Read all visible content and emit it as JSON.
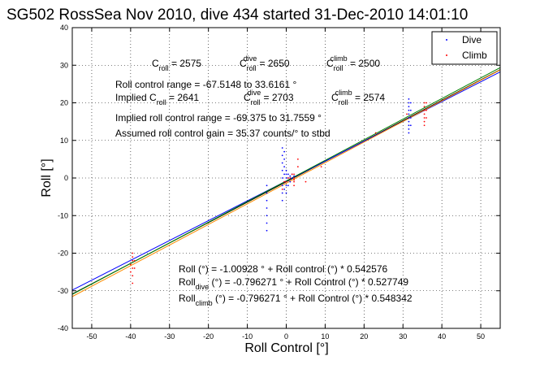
{
  "chart_data": {
    "type": "scatter",
    "title": "SG502 RossSea Nov 2010, dive 434 started 31-Dec-2010 14:01:10",
    "xlabel": "Roll Control [°]",
    "ylabel": "Roll [°]",
    "xlim": [
      -55,
      55
    ],
    "ylim": [
      -40,
      40
    ],
    "xticks": [
      -50,
      -40,
      -30,
      -20,
      -10,
      0,
      10,
      20,
      30,
      40,
      50
    ],
    "yticks": [
      -40,
      -30,
      -20,
      -10,
      0,
      10,
      20,
      30,
      40
    ],
    "grid": true,
    "legend_position": "top-right",
    "legend": [
      {
        "label": "Dive",
        "color": "#0000ff"
      },
      {
        "label": "Climb",
        "color": "#ff0000"
      }
    ],
    "series": [
      {
        "name": "Dive",
        "color": "#0000ff",
        "points": [
          [
            -5,
            -14
          ],
          [
            -5,
            -12
          ],
          [
            -5,
            -10
          ],
          [
            -5,
            -8
          ],
          [
            -5,
            -6
          ],
          [
            -5,
            -4
          ],
          [
            -5,
            -2
          ],
          [
            -1,
            -6
          ],
          [
            -1,
            -4
          ],
          [
            -1,
            -2
          ],
          [
            -1,
            0
          ],
          [
            -1,
            2
          ],
          [
            -1,
            4
          ],
          [
            -1,
            6
          ],
          [
            -1,
            8
          ],
          [
            -0.5,
            -3
          ],
          [
            -0.5,
            -1
          ],
          [
            -0.5,
            1
          ],
          [
            -0.5,
            3
          ],
          [
            -0.5,
            5
          ],
          [
            -0.5,
            7
          ],
          [
            0,
            -4
          ],
          [
            0,
            -2
          ],
          [
            0,
            0
          ],
          [
            0,
            1
          ],
          [
            0,
            2
          ],
          [
            0,
            -1
          ],
          [
            0.5,
            -2
          ],
          [
            0.5,
            0
          ],
          [
            0.5,
            1
          ],
          [
            1,
            -1
          ],
          [
            1,
            0
          ],
          [
            1,
            0.5
          ],
          [
            1.5,
            0
          ],
          [
            1.5,
            1
          ],
          [
            2,
            0.5
          ],
          [
            31.5,
            12
          ],
          [
            31.5,
            13
          ],
          [
            31.5,
            14
          ],
          [
            31.5,
            15
          ],
          [
            31.5,
            16
          ],
          [
            31.5,
            17
          ],
          [
            31.5,
            18
          ],
          [
            31.5,
            19
          ],
          [
            31.5,
            20
          ],
          [
            31.5,
            21
          ],
          [
            32,
            14
          ],
          [
            32,
            16
          ],
          [
            32,
            18
          ],
          [
            32,
            20
          ]
        ]
      },
      {
        "name": "Climb",
        "color": "#ff0000",
        "points": [
          [
            -39.5,
            -28
          ],
          [
            -39.5,
            -26
          ],
          [
            -39.5,
            -24
          ],
          [
            -39.5,
            -22
          ],
          [
            -39.5,
            -21
          ],
          [
            -39.5,
            -20
          ],
          [
            -40,
            -23
          ],
          [
            -40,
            -25
          ],
          [
            -39,
            -22
          ],
          [
            -39,
            -24
          ],
          [
            -1,
            -3
          ],
          [
            -0.5,
            -1
          ],
          [
            0,
            -1
          ],
          [
            0.5,
            0
          ],
          [
            1,
            0
          ],
          [
            1.5,
            1
          ],
          [
            2,
            -2
          ],
          [
            2,
            -1
          ],
          [
            2,
            0
          ],
          [
            2,
            1
          ],
          [
            2,
            -0.5
          ],
          [
            3,
            5
          ],
          [
            3,
            3
          ],
          [
            5,
            -1
          ],
          [
            9,
            3
          ],
          [
            23,
            12
          ],
          [
            35.5,
            14
          ],
          [
            35.5,
            15
          ],
          [
            35.5,
            16
          ],
          [
            35.5,
            17
          ],
          [
            35.5,
            18
          ],
          [
            35.5,
            19
          ],
          [
            35.5,
            20
          ],
          [
            36,
            16
          ],
          [
            36,
            18
          ],
          [
            36,
            20
          ],
          [
            31,
            17
          ]
        ]
      }
    ],
    "fit_lines": [
      {
        "color": "#000000",
        "intercept": -1.00928,
        "slope": 0.542576
      },
      {
        "color": "#0000ff",
        "intercept": -0.796271,
        "slope": 0.527749
      },
      {
        "color": "#008000",
        "intercept": -0.796271,
        "slope": 0.548342
      },
      {
        "color": "#ff8c00",
        "intercept": -1.4,
        "slope": 0.548
      }
    ]
  },
  "annotations": {
    "c_roll": {
      "base": "C",
      "sub": "roll",
      "value": " = 2575"
    },
    "c_roll_dive": {
      "base": "C",
      "sub": "roll",
      "sup": "dive",
      "value": " = 2650"
    },
    "c_roll_climb": {
      "base": "C",
      "sub": "roll",
      "sup": "climb",
      "value": " = 2500"
    },
    "roll_control_range": "Roll control range = -67.5148 to 33.6161 °",
    "implied_c_roll": {
      "prefix": "Implied C",
      "sub": "roll",
      "value": " = 2641"
    },
    "implied_c_roll_dive": {
      "base": "C",
      "sub": "roll",
      "sup": "dive",
      "value": " = 2703"
    },
    "implied_c_roll_climb": {
      "base": "C",
      "sub": "roll",
      "sup": "climb",
      "value": " = 2574"
    },
    "implied_range": "Implied roll control range = -69.375 to 31.7559 °",
    "assumed_gain": "Assumed roll control gain = 35.37 counts/° to stbd",
    "eq_roll": "Roll (°) = -1.00928 ° + Roll control (°) * 0.542576",
    "eq_dive": {
      "base": "Roll",
      "sub": "dive",
      "rest": " (°) = -0.796271 ° + Roll Control (°) * 0.527749"
    },
    "eq_climb": {
      "base": "Roll",
      "sub": "climb",
      "rest": " (°) = -0.796271 ° + Roll Control (°) * 0.548342"
    }
  }
}
